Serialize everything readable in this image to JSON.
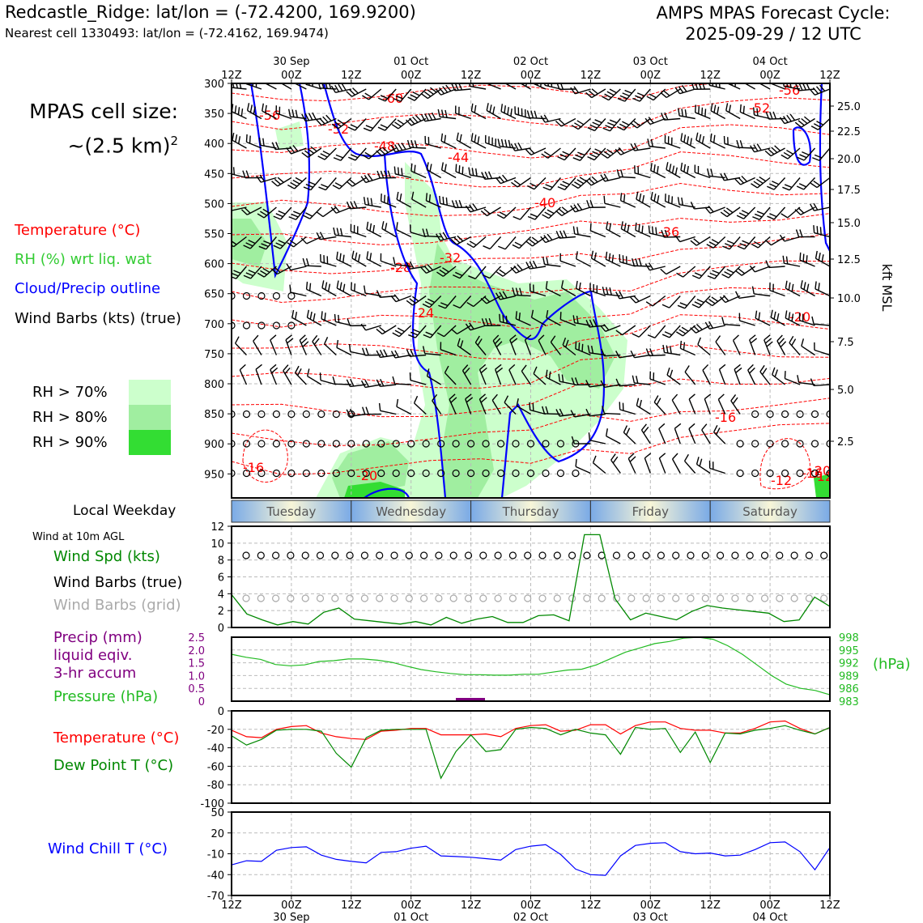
{
  "header": {
    "station": "Redcastle_Ridge: lat/lon = (-72.4200, 169.9200)",
    "nearest_cell": "Nearest cell 1330493: lat/lon = (-72.4162, 169.9474)",
    "cycle_line1": "AMPS MPAS Forecast Cycle:",
    "cycle_line2": "2025-09-29 / 12 UTC"
  },
  "cell_size": {
    "line1": "MPAS cell size:",
    "line2": "~(2.5 km)",
    "exponent": "2"
  },
  "legend": {
    "temperature": "Temperature (°C)",
    "rh": "RH (%) wrt liq. wat",
    "cloud": "Cloud/Precip outline",
    "wind": "Wind Barbs (kts) (true)",
    "rh70": "RH > 70%",
    "rh80": "RH > 80%",
    "rh90": "RH > 90%"
  },
  "colors": {
    "temperature": "#ff0000",
    "rh": "#33cc33",
    "cloud": "#0000ff",
    "rh70": "#ccffcc",
    "rh80": "#a0eea0",
    "rh90": "#33dd33",
    "dewpoint": "#008800",
    "pressure": "#22bb22",
    "precip": "#800080",
    "windchill": "#0000ff",
    "grid_barb": "#aaaaaa"
  },
  "time_axis": {
    "ticks": [
      "12Z",
      "00Z",
      "12Z",
      "00Z",
      "12Z",
      "00Z",
      "12Z",
      "00Z",
      "12Z",
      "00Z",
      "12Z"
    ],
    "dates": [
      "30 Sep",
      "01 Oct",
      "02 Oct",
      "03 Oct",
      "04 Oct"
    ]
  },
  "weekday": {
    "label": "Local Weekday",
    "days": [
      "Tuesday",
      "Wednesday",
      "Thursday",
      "Friday",
      "Saturday"
    ]
  },
  "panels": {
    "wind10": {
      "title": "Wind at 10m AGL",
      "spd_label": "Wind Spd (kts)",
      "barbs_true": "Wind Barbs (true)",
      "barbs_grid": "Wind Barbs (grid)"
    },
    "precip": {
      "label1": "Precip (mm)",
      "label2": "liquid eqiv.",
      "label3": "3-hr accum",
      "pressure_label": "Pressure (hPa)",
      "hpa_unit": "(hPa)"
    },
    "temp": {
      "temp_label": "Temperature (°C)",
      "dew_label": "Dew Point T (°C)"
    },
    "windchill": {
      "label": "Wind Chill T (°C)"
    }
  },
  "chart_data": [
    {
      "type": "heatmap",
      "name": "cross-section",
      "y_left_ticks": [
        "300",
        "350",
        "400",
        "450",
        "500",
        "550",
        "600",
        "650",
        "700",
        "750",
        "800",
        "850",
        "900",
        "950"
      ],
      "y_right_ticks": [
        "25.0",
        "22.5",
        "20.0",
        "17.5",
        "15.0",
        "12.5",
        "10.0",
        "7.5",
        "5.0",
        "2.5"
      ],
      "y_right_label": "kft MSL",
      "temperature_contour_labels": [
        "-60",
        "-56",
        "-52",
        "-48",
        "-44",
        "-40",
        "-36",
        "-32",
        "-28",
        "-24",
        "-20",
        "-16",
        "-12",
        "-20",
        "-56",
        "-52",
        "-16",
        "-20",
        "-16",
        "-12"
      ]
    },
    {
      "type": "line",
      "name": "wind-speed-10m",
      "ylim": [
        0,
        12
      ],
      "y_ticks": [
        "0",
        "2",
        "4",
        "6",
        "8",
        "10",
        "12"
      ],
      "values": [
        3.9,
        1.6,
        0.9,
        0.3,
        0.7,
        0.4,
        1.8,
        2.3,
        1.0,
        0.8,
        0.6,
        0.4,
        0.7,
        0.3,
        1.2,
        0.5,
        1.0,
        1.3,
        0.6,
        0.6,
        1.4,
        1.5,
        0.8,
        11.0,
        11.0,
        3.4,
        0.9,
        1.7,
        1.3,
        0.9,
        1.9,
        2.6,
        2.3,
        2.1,
        1.9,
        1.7,
        0.7,
        0.9,
        3.6,
        2.5
      ]
    },
    {
      "type": "line",
      "name": "pressure",
      "y_left_ticks": [
        "0",
        "0.5",
        "1.0",
        "1.5",
        "2.0",
        "2.5"
      ],
      "y_right_ticks": [
        "983",
        "986",
        "989",
        "992",
        "995",
        "998"
      ],
      "pressure_hpa": [
        994.0,
        993.3,
        992.8,
        991.6,
        991.3,
        991.5,
        992.3,
        992.5,
        992.9,
        992.9,
        992.6,
        992.1,
        991.2,
        990.4,
        989.9,
        989.5,
        989.2,
        989.2,
        989.1,
        989.1,
        989.3,
        989.3,
        989.8,
        990.3,
        990.5,
        991.5,
        993.0,
        994.5,
        995.5,
        996.5,
        997.0,
        997.8,
        998.0,
        997.5,
        996.0,
        994.0,
        991.5,
        989.0,
        987.0,
        986.0,
        985.5,
        984.5
      ]
    },
    {
      "type": "line",
      "name": "temperature-dewpoint",
      "ylim": [
        -100,
        0
      ],
      "y_ticks": [
        "0",
        "-20",
        "-40",
        "-60",
        "-80",
        "-100"
      ],
      "series": [
        {
          "name": "Temperature (°C)",
          "values": [
            -21,
            -28,
            -29,
            -20,
            -17,
            -16,
            -24,
            -28,
            -30,
            -31,
            -22,
            -21,
            -19,
            -19,
            -26,
            -26,
            -26,
            -25,
            -28,
            -19,
            -16,
            -15,
            -22,
            -21,
            -15,
            -15,
            -25,
            -16,
            -12,
            -12,
            -19,
            -21,
            -21,
            -24,
            -24,
            -19,
            -12,
            -11,
            -19,
            -25,
            -18
          ]
        },
        {
          "name": "Dew Point T (°C)",
          "values": [
            -27,
            -37,
            -31,
            -21,
            -20,
            -20,
            -22,
            -46,
            -61,
            -29,
            -21,
            -20,
            -20,
            -20,
            -73,
            -44,
            -26,
            -44,
            -42,
            -20,
            -18,
            -19,
            -26,
            -20,
            -24,
            -26,
            -47,
            -18,
            -20,
            -19,
            -45,
            -23,
            -56,
            -24,
            -25,
            -21,
            -19,
            -16,
            -21,
            -25,
            -18
          ]
        }
      ]
    },
    {
      "type": "line",
      "name": "wind-chill",
      "ylim": [
        -70,
        50
      ],
      "y_ticks": [
        "50",
        "20",
        "-10",
        "-40",
        "-70"
      ],
      "values": [
        -26,
        -20,
        -21,
        -5,
        -1,
        0,
        -12,
        -18,
        -21,
        -23,
        -8,
        -7,
        -2,
        1,
        -13,
        -14,
        -15,
        -17,
        -19,
        -4,
        1,
        3,
        -11,
        -32,
        -40,
        -41,
        -13,
        2,
        5,
        6,
        -7,
        -10,
        -9,
        -13,
        -12,
        -4,
        6,
        7,
        -7,
        -33,
        -1
      ]
    }
  ]
}
